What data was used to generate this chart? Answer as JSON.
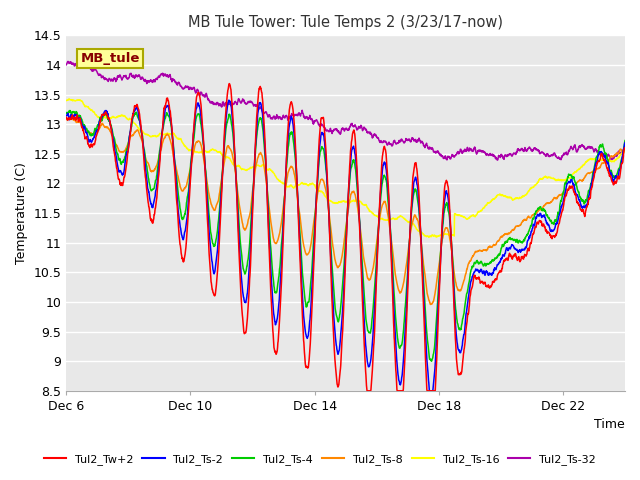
{
  "title": "MB Tule Tower: Tule Temps 2 (3/23/17-now)",
  "xlabel": "Time",
  "ylabel": "Temperature (C)",
  "ylim": [
    8.5,
    14.5
  ],
  "yticks": [
    8.5,
    9.0,
    9.5,
    10.0,
    10.5,
    11.0,
    11.5,
    12.0,
    12.5,
    13.0,
    13.5,
    14.0,
    14.5
  ],
  "xtick_labels": [
    "Dec 6",
    "Dec 10",
    "Dec 14",
    "Dec 18",
    "Dec 22"
  ],
  "xtick_positions": [
    0,
    4,
    8,
    12,
    16
  ],
  "xlim": [
    0,
    18
  ],
  "series_colors": {
    "Tul2_Tw+2": "#ff0000",
    "Tul2_Ts-2": "#0000ff",
    "Tul2_Ts-4": "#00cc00",
    "Tul2_Ts-8": "#ff8800",
    "Tul2_Ts-16": "#ffff00",
    "Tul2_Ts-32": "#aa00aa"
  },
  "legend_label": "MB_tule",
  "bg_color": "#e8e8e8",
  "grid_color": "#ffffff"
}
